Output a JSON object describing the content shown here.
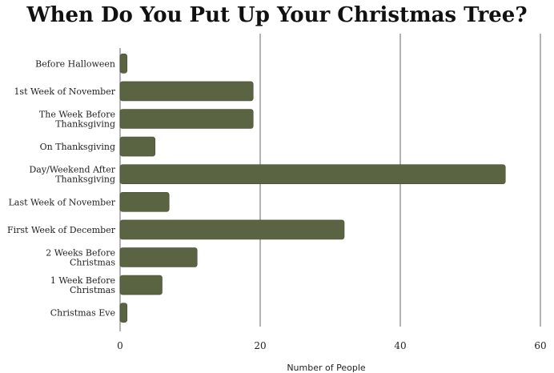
{
  "chart_data": {
    "type": "bar",
    "orientation": "horizontal",
    "title": "When Do You Put Up Your Christmas Tree?",
    "xlabel": "Number of People",
    "ylabel": "",
    "categories": [
      [
        "Before Halloween"
      ],
      [
        "1st Week of November"
      ],
      [
        "The Week Before",
        "Thanksgiving"
      ],
      [
        "On Thanksgiving"
      ],
      [
        "Day/Weekend After",
        "Thanksgiving"
      ],
      [
        "Last Week of November"
      ],
      [
        "First Week of December"
      ],
      [
        "2 Weeks Before",
        "Christmas"
      ],
      [
        "1 Week Before",
        "Christmas"
      ],
      [
        "Christmas Eve"
      ]
    ],
    "values": [
      1,
      19,
      19,
      5,
      55,
      7,
      32,
      11,
      6,
      1
    ],
    "xlim": [
      0,
      60
    ],
    "xticks": [
      0,
      20,
      40,
      60
    ],
    "grid": true,
    "bar_color": "#5a6443"
  }
}
